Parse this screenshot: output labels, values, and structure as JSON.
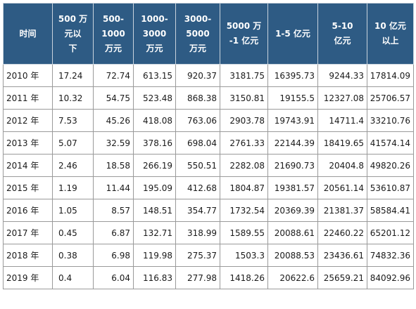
{
  "table": {
    "headers": [
      "时间",
      "500 万\n元以\n下",
      "500-\n1000\n万元",
      "1000-\n3000\n万元",
      "3000-\n5000\n万元",
      "5000 万\n-1 亿元",
      "1-5 亿元",
      "5-10\n亿元",
      "10 亿元\n以上"
    ],
    "rows": [
      [
        "2010 年",
        "17.24",
        "72.74",
        "613.15",
        "920.37",
        "3181.75",
        "16395.73",
        "9244.33",
        "17814.09"
      ],
      [
        "2011 年",
        "10.32",
        "54.75",
        "523.48",
        "868.38",
        "3150.81",
        "19155.5",
        "12327.08",
        "25706.57"
      ],
      [
        "2012 年",
        "7.53",
        "45.26",
        "418.08",
        "763.06",
        "2903.78",
        "19743.91",
        "14711.4",
        "33210.76"
      ],
      [
        "2013 年",
        "5.07",
        "32.59",
        "378.16",
        "698.04",
        "2761.33",
        "22144.39",
        "18419.65",
        "41574.14"
      ],
      [
        "2014 年",
        "2.46",
        "18.58",
        "266.19",
        "550.51",
        "2282.08",
        "21690.73",
        "20404.8",
        "49820.26"
      ],
      [
        "2015 年",
        "1.19",
        "11.44",
        "195.09",
        "412.68",
        "1804.87",
        "19381.57",
        "20561.14",
        "53610.87"
      ],
      [
        "2016 年",
        "1.05",
        "8.57",
        "148.51",
        "354.77",
        "1732.54",
        "20369.39",
        "21381.37",
        "58584.41"
      ],
      [
        "2017 年",
        "0.45",
        "6.87",
        "132.71",
        "318.99",
        "1589.55",
        "20088.61",
        "22460.22",
        "65201.12"
      ],
      [
        "2018 年",
        "0.38",
        "6.98",
        "119.98",
        "275.37",
        "1503.3",
        "20088.53",
        "23436.61",
        "74832.36"
      ],
      [
        "2019 年",
        "0.4",
        "6.04",
        "116.83",
        "277.98",
        "1418.26",
        "20622.6",
        "25659.21",
        "84092.96"
      ]
    ]
  },
  "colors": {
    "header_bg": "#2e5b84",
    "header_text": "#ffffff",
    "cell_border": "#9a9a9a"
  }
}
